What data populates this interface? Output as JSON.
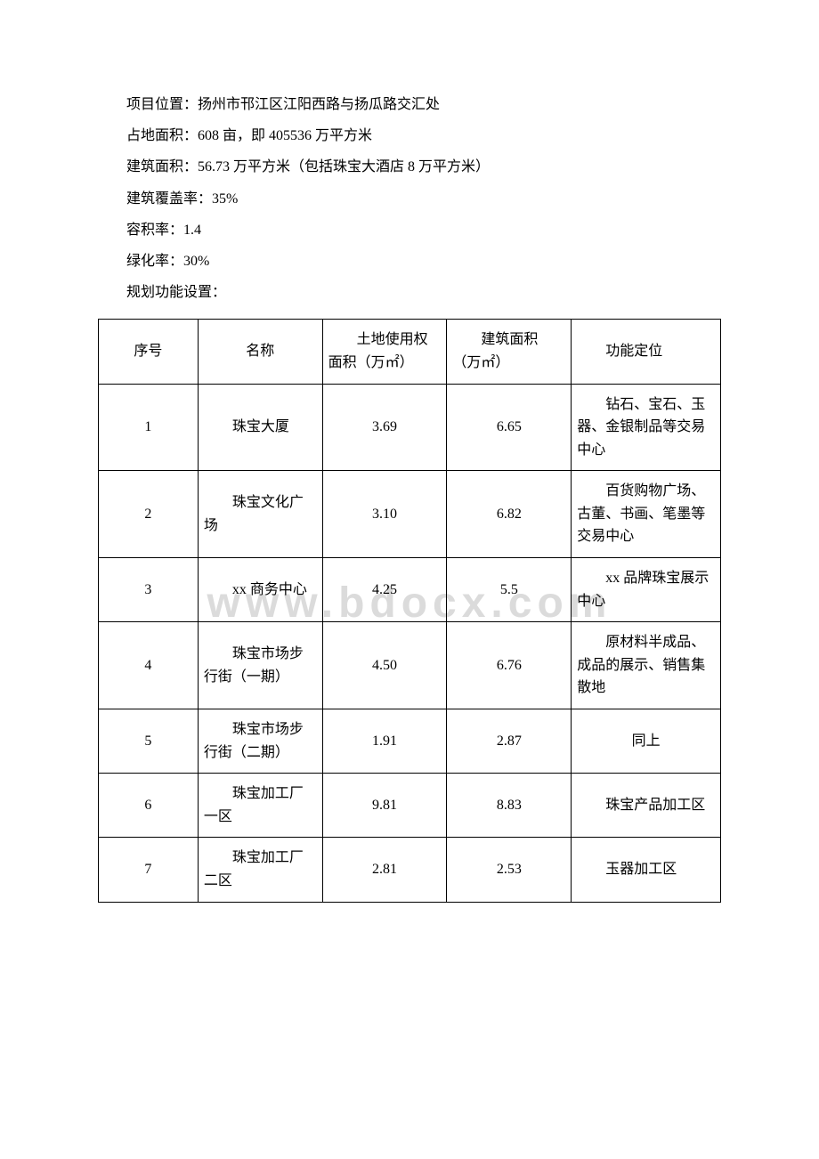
{
  "paragraphs": {
    "p1": "项目位置：扬州市邗江区江阳西路与扬瓜路交汇处",
    "p2": "占地面积：608 亩，即 405536 万平方米",
    "p3": "建筑面积：56.73 万平方米（包括珠宝大酒店 8 万平方米）",
    "p4": "建筑覆盖率：35%",
    "p5": "容积率：1.4",
    "p6": "绿化率：30%",
    "p7": "规划功能设置："
  },
  "table": {
    "columns": [
      "序号",
      "名称",
      "土地使用权面积（万㎡）",
      "建筑面积（万㎡）",
      "功能定位"
    ],
    "col_widths_pct": [
      16,
      20,
      20,
      20,
      24
    ],
    "header_align": [
      "center",
      "center",
      "indent",
      "indent",
      "indent"
    ],
    "rows": [
      {
        "seq": "1",
        "name": "珠宝大厦",
        "land": "3.69",
        "build": "6.65",
        "func": "钻石、宝石、玉器、金银制品等交易中心"
      },
      {
        "seq": "2",
        "name": "珠宝文化广场",
        "land": "3.10",
        "build": "6.82",
        "func": "百货购物广场、古董、书画、笔墨等交易中心"
      },
      {
        "seq": "3",
        "name": "xx 商务中心",
        "land": "4.25",
        "build": "5.5",
        "func": "xx 品牌珠宝展示中心"
      },
      {
        "seq": "4",
        "name": "珠宝市场步行街（一期）",
        "land": "4.50",
        "build": "6.76",
        "func": "原材料半成品、成品的展示、销售集散地"
      },
      {
        "seq": "5",
        "name": "珠宝市场步行街（二期）",
        "land": "1.91",
        "build": "2.87",
        "func": "同上"
      },
      {
        "seq": "6",
        "name": "珠宝加工厂一区",
        "land": "9.81",
        "build": "8.83",
        "func": "珠宝产品加工区"
      },
      {
        "seq": "7",
        "name": "珠宝加工厂二区",
        "land": "2.81",
        "build": "2.53",
        "func": "玉器加工区"
      }
    ],
    "border_color": "#000000",
    "font_size_pt": 12,
    "row5_func_align": "center"
  },
  "watermark_text": "www.bdocx.com",
  "colors": {
    "text": "#000000",
    "background": "#ffffff",
    "watermark": "rgba(190,190,190,0.55)"
  },
  "typography": {
    "body_font": "SimSun",
    "body_size_pt": 12,
    "line_height": 2.2
  }
}
